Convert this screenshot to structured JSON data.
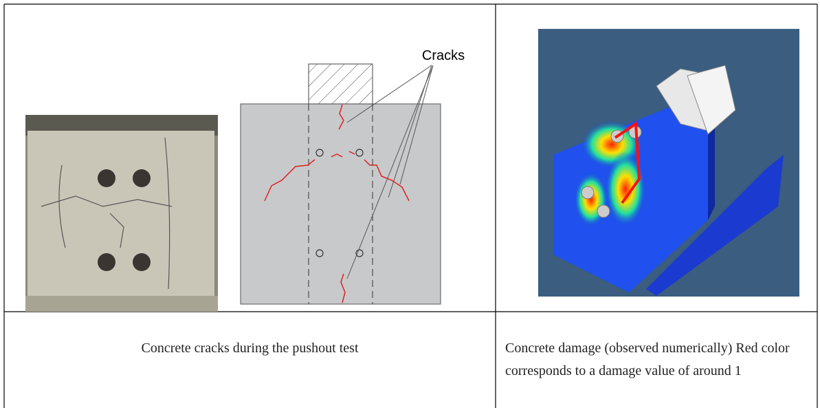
{
  "diagram": {
    "label": "Cracks"
  },
  "table": {
    "captions": [
      "Concrete cracks during the pushout test",
      "Concrete damage (observed numerically) Red color corresponds to a damage value of around 1"
    ]
  }
}
